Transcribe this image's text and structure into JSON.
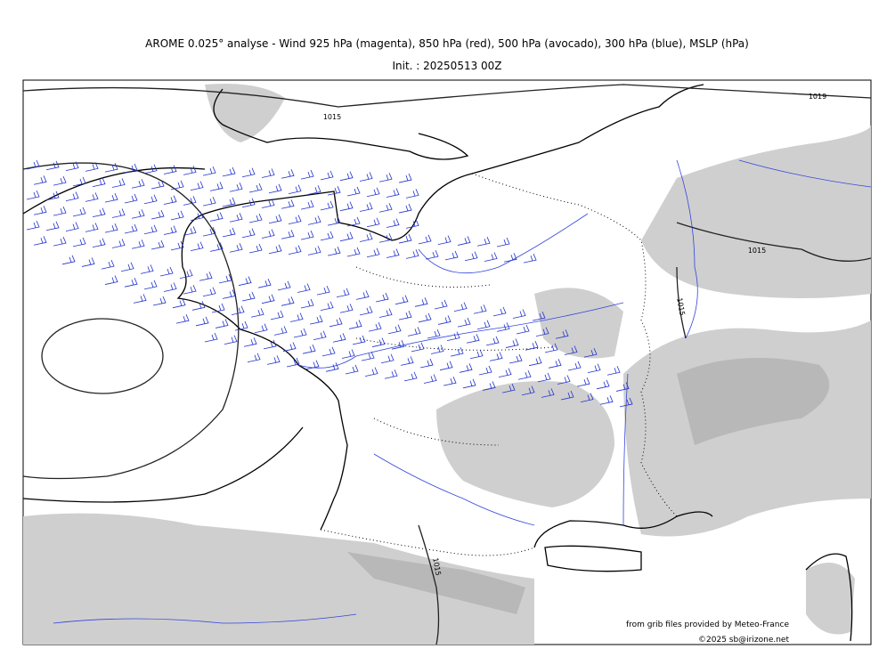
{
  "header": {
    "title": "AROME 0.025° analyse - Wind 925 hPa (magenta), 850 hPa (red), 500 hPa (avocado), 300 hPa (blue), MSLP (hPa)",
    "init": "Init. : 20250513 00Z"
  },
  "map": {
    "isobar_labels": [
      "1015",
      "1019",
      "1015",
      "1015",
      "1015"
    ]
  },
  "credits": {
    "source": "from grib files provided by Meteo-France",
    "copyright": "©2025 sb@irizone.net"
  }
}
